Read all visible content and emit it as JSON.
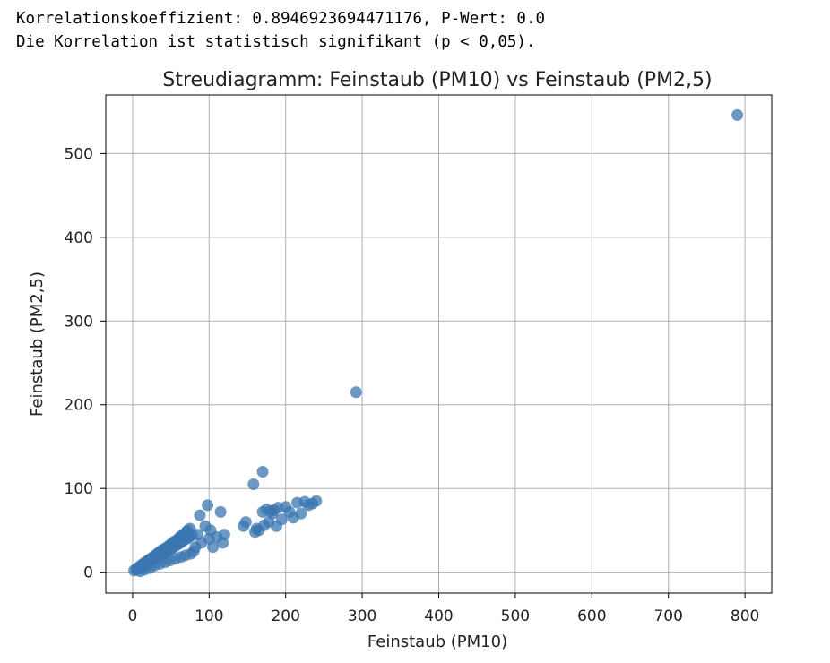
{
  "output": {
    "line1": "Korrelationskoeffizient: 0.8946923694471176, P-Wert: 0.0",
    "line2": "Die Korrelation ist statistisch signifikant (p < 0,05)."
  },
  "chart_data": {
    "type": "scatter",
    "title": "Streudiagramm: Feinstaub (PM10) vs Feinstaub (PM2,5)",
    "xlabel": "Feinstaub (PM10)",
    "ylabel": "Feinstaub (PM2,5)",
    "xlim": [
      -35,
      835
    ],
    "ylim": [
      -25,
      570
    ],
    "xticks": [
      0,
      100,
      200,
      300,
      400,
      500,
      600,
      700,
      800
    ],
    "yticks": [
      0,
      100,
      200,
      300,
      400,
      500
    ],
    "grid": true,
    "marker_color": "#3a75b0",
    "marker_alpha": 0.75,
    "points": {
      "x": [
        2,
        5,
        8,
        10,
        12,
        15,
        18,
        20,
        22,
        25,
        28,
        30,
        32,
        35,
        38,
        40,
        42,
        45,
        48,
        50,
        52,
        55,
        58,
        60,
        62,
        65,
        68,
        70,
        72,
        75,
        6,
        9,
        14,
        17,
        21,
        24,
        27,
        31,
        34,
        37,
        41,
        44,
        47,
        51,
        54,
        57,
        61,
        64,
        67,
        71,
        74,
        78,
        10,
        16,
        23,
        29,
        36,
        43,
        49,
        56,
        63,
        69,
        76,
        80,
        82,
        85,
        88,
        90,
        95,
        98,
        100,
        102,
        105,
        110,
        115,
        120,
        118,
        145,
        148,
        160,
        162,
        170,
        175,
        180,
        185,
        190,
        200,
        210,
        220,
        230,
        235,
        240,
        165,
        172,
        178,
        183,
        188,
        195,
        205,
        215,
        225,
        158,
        170,
        292,
        790
      ],
      "y": [
        2,
        4,
        6,
        7,
        9,
        11,
        12,
        14,
        15,
        17,
        19,
        20,
        22,
        24,
        26,
        27,
        28,
        30,
        32,
        33,
        35,
        37,
        38,
        40,
        42,
        44,
        46,
        48,
        50,
        52,
        3,
        5,
        7,
        9,
        11,
        13,
        15,
        17,
        19,
        21,
        22,
        24,
        26,
        28,
        30,
        32,
        34,
        36,
        38,
        40,
        42,
        44,
        1,
        3,
        5,
        8,
        10,
        12,
        14,
        16,
        18,
        20,
        22,
        25,
        30,
        45,
        68,
        35,
        55,
        80,
        40,
        50,
        30,
        42,
        72,
        45,
        35,
        55,
        60,
        48,
        52,
        72,
        75,
        73,
        74,
        77,
        78,
        65,
        70,
        80,
        82,
        85,
        50,
        56,
        60,
        70,
        55,
        63,
        72,
        83,
        84,
        105,
        120,
        215,
        546
      ]
    }
  }
}
